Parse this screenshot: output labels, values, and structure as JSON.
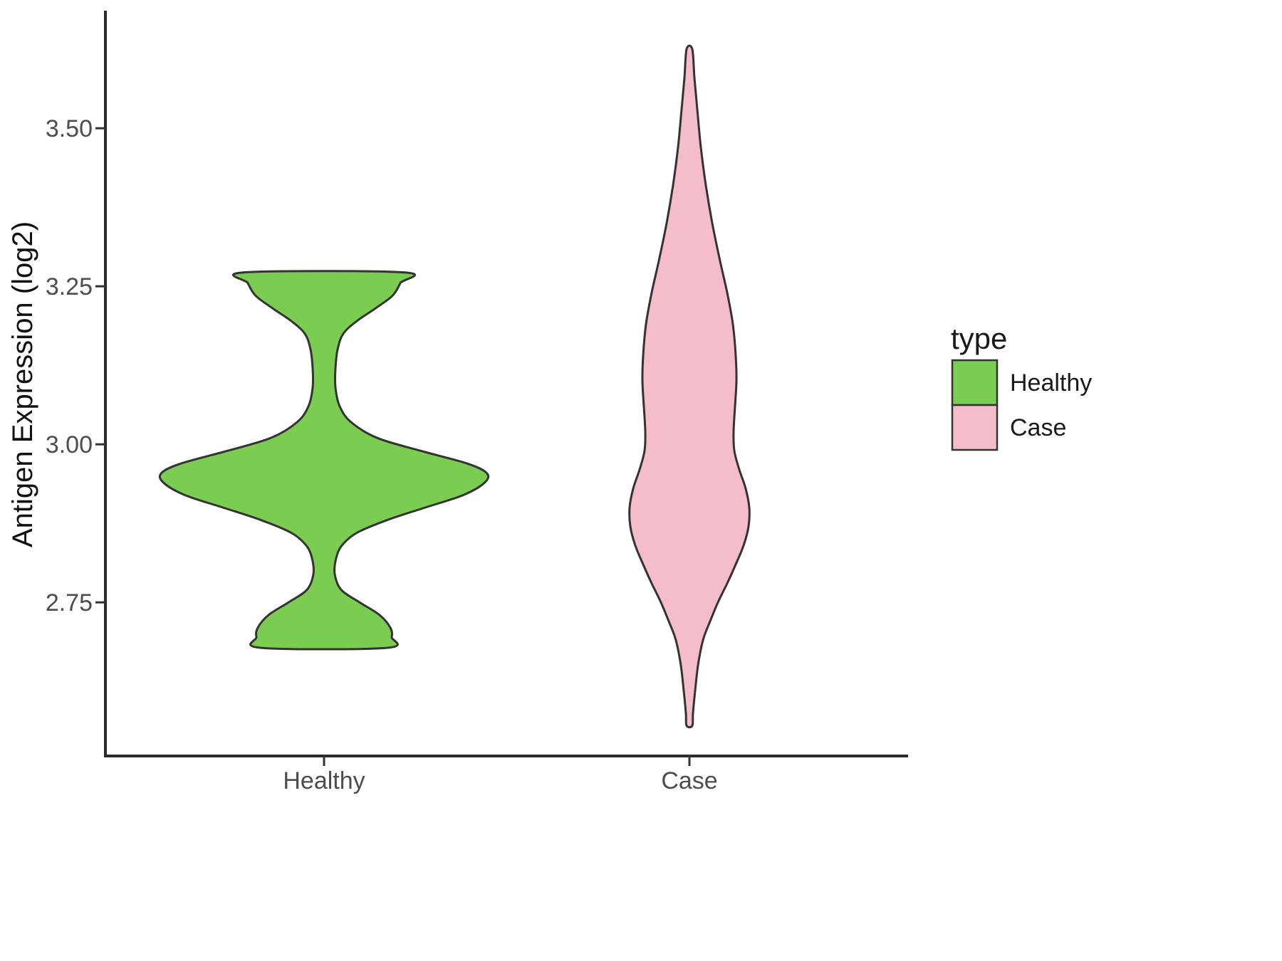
{
  "chart_data": {
    "type": "violin",
    "title": "",
    "xlabel": "",
    "ylabel": "Antigen Expression (log2)",
    "categories": [
      "Healthy",
      "Case"
    ],
    "yticks": [
      {
        "value": 2.75,
        "label": "2.75"
      },
      {
        "value": 3.0,
        "label": "3.00"
      },
      {
        "value": 3.25,
        "label": "3.25"
      },
      {
        "value": 3.5,
        "label": "3.50"
      }
    ],
    "ylim": [
      2.507,
      3.686
    ],
    "grid": false,
    "legend": {
      "title": "type",
      "position": "right",
      "entries": [
        {
          "label": "Healthy",
          "color": "#7bcd52"
        },
        {
          "label": "Case",
          "color": "#f5bccb"
        }
      ]
    },
    "series": [
      {
        "name": "Healthy",
        "color": "#7bcd52",
        "stroke": "#333333",
        "value_range": [
          2.678,
          3.272
        ],
        "profile": [
          [
            3.272,
            112
          ],
          [
            3.255,
            107
          ],
          [
            3.235,
            96
          ],
          [
            3.215,
            72
          ],
          [
            3.195,
            46
          ],
          [
            3.175,
            27
          ],
          [
            3.15,
            19
          ],
          [
            3.12,
            16
          ],
          [
            3.09,
            16
          ],
          [
            3.06,
            22
          ],
          [
            3.035,
            38
          ],
          [
            3.01,
            75
          ],
          [
            2.99,
            135
          ],
          [
            2.97,
            200
          ],
          [
            2.955,
            228
          ],
          [
            2.94,
            226
          ],
          [
            2.92,
            196
          ],
          [
            2.9,
            142
          ],
          [
            2.88,
            88
          ],
          [
            2.86,
            46
          ],
          [
            2.84,
            25
          ],
          [
            2.82,
            17
          ],
          [
            2.795,
            15
          ],
          [
            2.77,
            24
          ],
          [
            2.75,
            50
          ],
          [
            2.73,
            78
          ],
          [
            2.71,
            93
          ],
          [
            2.695,
            95
          ],
          [
            2.678,
            88
          ]
        ]
      },
      {
        "name": "Case",
        "color": "#f5bccb",
        "stroke": "#333333",
        "value_range": [
          2.555,
          3.625
        ],
        "profile": [
          [
            3.625,
            4
          ],
          [
            3.58,
            7
          ],
          [
            3.53,
            11
          ],
          [
            3.47,
            16
          ],
          [
            3.41,
            23
          ],
          [
            3.35,
            32
          ],
          [
            3.29,
            43
          ],
          [
            3.24,
            53
          ],
          [
            3.19,
            61
          ],
          [
            3.14,
            65
          ],
          [
            3.1,
            66
          ],
          [
            3.06,
            64
          ],
          [
            3.02,
            62
          ],
          [
            2.99,
            63
          ],
          [
            2.96,
            70
          ],
          [
            2.93,
            79
          ],
          [
            2.9,
            84
          ],
          [
            2.87,
            83
          ],
          [
            2.84,
            76
          ],
          [
            2.81,
            65
          ],
          [
            2.78,
            53
          ],
          [
            2.75,
            40
          ],
          [
            2.72,
            29
          ],
          [
            2.69,
            19
          ],
          [
            2.65,
            12
          ],
          [
            2.61,
            8
          ],
          [
            2.575,
            5
          ],
          [
            2.555,
            4
          ]
        ]
      }
    ]
  },
  "colors": {
    "background": "#ffffff",
    "axis": "#2b2b2b",
    "tick": "#333333",
    "tick_label": "#4d4d4d",
    "text": "#1a1a1a"
  }
}
